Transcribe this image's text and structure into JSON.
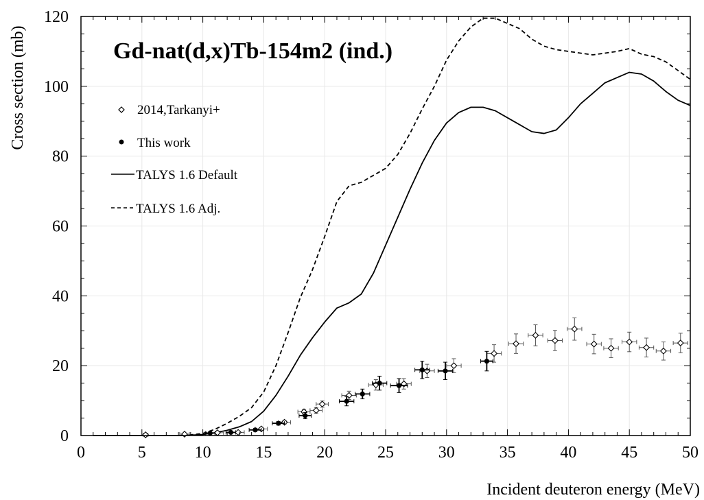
{
  "chart_data": {
    "type": "scatter",
    "title": "Gd-nat(d,x)Tb-154m2 (ind.)",
    "xlabel": "Incident deuteron energy (MeV)",
    "ylabel": "Cross section (mb)",
    "xlim": [
      0,
      50
    ],
    "ylim": [
      0,
      120
    ],
    "x_ticks": [
      0,
      5,
      10,
      15,
      20,
      25,
      30,
      35,
      40,
      45,
      50
    ],
    "y_ticks": [
      0,
      20,
      40,
      60,
      80,
      100,
      120
    ],
    "grid": true,
    "legend_position": "top-left",
    "series": [
      {
        "name": "2014,Tarkanyi+",
        "kind": "scatter",
        "marker": "open-diamond",
        "points": [
          {
            "x": 5.3,
            "y": 0.2,
            "xerr": 0.2,
            "yerr": 0.3
          },
          {
            "x": 8.5,
            "y": 0.4,
            "xerr": 0.4,
            "yerr": 0.3
          },
          {
            "x": 11.2,
            "y": 0.8,
            "xerr": 0.5,
            "yerr": 0.3
          },
          {
            "x": 12.9,
            "y": 0.9,
            "xerr": 0.5,
            "yerr": 0.3
          },
          {
            "x": 14.8,
            "y": 1.9,
            "xerr": 0.5,
            "yerr": 0.4
          },
          {
            "x": 16.7,
            "y": 3.8,
            "xerr": 0.5,
            "yerr": 0.5
          },
          {
            "x": 18.3,
            "y": 6.8,
            "xerr": 0.5,
            "yerr": 0.7
          },
          {
            "x": 19.3,
            "y": 7.2,
            "xerr": 0.5,
            "yerr": 0.8
          },
          {
            "x": 19.8,
            "y": 9.0,
            "xerr": 0.5,
            "yerr": 0.9
          },
          {
            "x": 22.0,
            "y": 11.5,
            "xerr": 0.6,
            "yerr": 1.2
          },
          {
            "x": 24.2,
            "y": 14.5,
            "xerr": 0.6,
            "yerr": 1.5
          },
          {
            "x": 26.5,
            "y": 14.8,
            "xerr": 0.6,
            "yerr": 1.5
          },
          {
            "x": 28.4,
            "y": 18.5,
            "xerr": 0.6,
            "yerr": 1.9
          },
          {
            "x": 30.6,
            "y": 20.0,
            "xerr": 0.6,
            "yerr": 2.0
          },
          {
            "x": 33.9,
            "y": 23.5,
            "xerr": 0.6,
            "yerr": 2.5
          },
          {
            "x": 35.7,
            "y": 26.3,
            "xerr": 0.6,
            "yerr": 2.8
          },
          {
            "x": 37.3,
            "y": 28.7,
            "xerr": 0.6,
            "yerr": 3.0
          },
          {
            "x": 38.9,
            "y": 27.2,
            "xerr": 0.6,
            "yerr": 2.9
          },
          {
            "x": 40.5,
            "y": 30.5,
            "xerr": 0.6,
            "yerr": 3.2
          },
          {
            "x": 42.1,
            "y": 26.2,
            "xerr": 0.6,
            "yerr": 2.8
          },
          {
            "x": 43.5,
            "y": 25.0,
            "xerr": 0.6,
            "yerr": 2.7
          },
          {
            "x": 45.0,
            "y": 26.8,
            "xerr": 0.6,
            "yerr": 2.8
          },
          {
            "x": 46.4,
            "y": 25.2,
            "xerr": 0.6,
            "yerr": 2.7
          },
          {
            "x": 47.8,
            "y": 24.2,
            "xerr": 0.6,
            "yerr": 2.6
          },
          {
            "x": 49.2,
            "y": 26.5,
            "xerr": 0.6,
            "yerr": 2.8
          }
        ]
      },
      {
        "name": "This work",
        "kind": "scatter",
        "marker": "filled-circle",
        "points": [
          {
            "x": 10.6,
            "y": 0.7,
            "xerr": 0.4,
            "yerr": 0.3
          },
          {
            "x": 12.3,
            "y": 0.9,
            "xerr": 0.4,
            "yerr": 0.3
          },
          {
            "x": 14.3,
            "y": 1.6,
            "xerr": 0.5,
            "yerr": 0.4
          },
          {
            "x": 16.2,
            "y": 3.5,
            "xerr": 0.5,
            "yerr": 0.5
          },
          {
            "x": 18.4,
            "y": 5.7,
            "xerr": 0.5,
            "yerr": 0.9
          },
          {
            "x": 21.8,
            "y": 9.8,
            "xerr": 0.6,
            "yerr": 1.3
          },
          {
            "x": 23.1,
            "y": 11.9,
            "xerr": 0.6,
            "yerr": 1.4
          },
          {
            "x": 24.5,
            "y": 15.0,
            "xerr": 0.6,
            "yerr": 2.0
          },
          {
            "x": 26.1,
            "y": 14.3,
            "xerr": 0.7,
            "yerr": 2.0
          },
          {
            "x": 28.0,
            "y": 18.8,
            "xerr": 0.6,
            "yerr": 2.5
          },
          {
            "x": 29.9,
            "y": 18.5,
            "xerr": 0.6,
            "yerr": 2.5
          },
          {
            "x": 33.3,
            "y": 21.3,
            "xerr": 0.5,
            "yerr": 2.8
          }
        ]
      },
      {
        "name": "TALYS 1.6 Default",
        "kind": "line",
        "style": "solid",
        "x": [
          1,
          8,
          9,
          10,
          11,
          12,
          13,
          14,
          15,
          16,
          17,
          18,
          19,
          20,
          21,
          22,
          23,
          24,
          25,
          26,
          27,
          28,
          29,
          30,
          31,
          32,
          33,
          34,
          35,
          36,
          37,
          38,
          39,
          40,
          41,
          42,
          43,
          44,
          45,
          46,
          47,
          48,
          49,
          50
        ],
        "y": [
          0,
          0,
          0.1,
          0.3,
          0.8,
          1.5,
          2.5,
          4,
          7,
          11.5,
          17,
          23,
          28,
          32.5,
          36.5,
          38,
          40.5,
          46.5,
          54.5,
          62.5,
          70.5,
          78,
          84.5,
          89.5,
          92.5,
          94,
          94,
          93,
          91,
          89,
          87,
          86.5,
          87.5,
          91,
          95,
          98,
          101,
          102.5,
          104,
          103.5,
          101.5,
          98.5,
          96,
          94.5
        ]
      },
      {
        "name": "TALYS 1.6 Adj.",
        "kind": "line",
        "style": "dashed",
        "x": [
          1,
          8,
          9,
          10,
          11,
          12,
          13,
          14,
          15,
          16,
          17,
          18,
          19,
          20,
          21,
          22,
          23,
          24,
          25,
          26,
          27,
          28,
          29,
          30,
          31,
          32,
          33,
          34,
          35,
          36,
          37,
          38,
          39,
          40,
          41,
          42,
          43,
          44,
          45,
          46,
          47,
          48,
          49,
          50
        ],
        "y": [
          0,
          0,
          0.2,
          0.6,
          1.8,
          3.5,
          5.5,
          8,
          12.5,
          20,
          29.5,
          39.5,
          47.5,
          57,
          67,
          71.5,
          72.5,
          74.5,
          76.5,
          80.5,
          86.5,
          93.5,
          100,
          107.5,
          113,
          117,
          119.5,
          119.5,
          118,
          116.5,
          113.5,
          111.5,
          110.5,
          110,
          109.5,
          109,
          109.5,
          110,
          110.8,
          109.2,
          108.5,
          107,
          104.5,
          102
        ]
      }
    ]
  }
}
